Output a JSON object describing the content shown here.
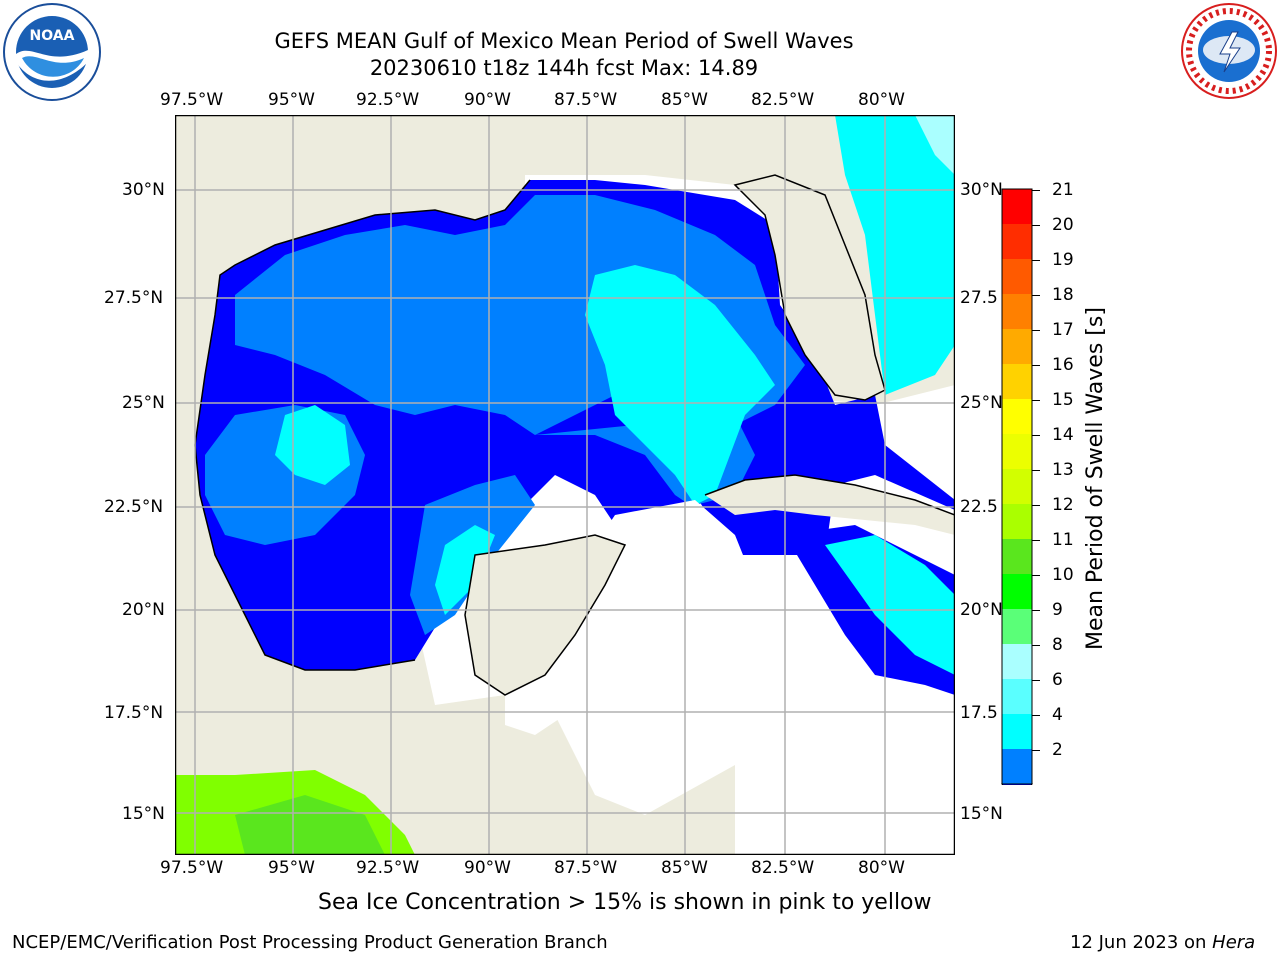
{
  "figure": {
    "title_line1": "GEFS MEAN Gulf of Mexico Mean Period of Swell Waves",
    "title_line2": "20230610 t18z 144h fcst   Max: 14.89",
    "note": "Sea Ice Concentration > 15% is shown in pink to yellow",
    "footer_left": "NCEP/EMC/Verification Post Processing Product Generation Branch",
    "footer_date": "12 Jun 2023 on ",
    "footer_host": "Hera"
  },
  "logos": {
    "left": "NOAA",
    "left_ring_text": "NATIONAL OCEANIC AND ATMOSPHERIC ADMINISTRATION · U.S. DEPARTMENT OF COMMERCE",
    "right_ring_text": "NATIONAL WEATHER SERVICE"
  },
  "map": {
    "lon_labels": [
      "97.5°W",
      "95°W",
      "92.5°W",
      "90°W",
      "87.5°W",
      "85°W",
      "82.5°W",
      "80°W"
    ],
    "lat_labels_left": [
      "30°N",
      "27.5°N",
      "25°N",
      "22.5°N",
      "20°N",
      "17.5°N",
      "15°N"
    ],
    "lat_labels_right": [
      "30°N",
      "27.5",
      "25°N",
      "22.5",
      "20°N",
      "17.5",
      "15°N"
    ],
    "colors": {
      "land": "#edecde",
      "grid": "#b0b0b0",
      "no_data": "#ffffff"
    }
  },
  "colorbar": {
    "label": "Mean Period of Swell Waves [s]",
    "tick_labels": [
      "21",
      "20",
      "19",
      "18",
      "17",
      "16",
      "15",
      "14",
      "13",
      "12",
      "11",
      "10",
      "9",
      "8",
      "6",
      "4",
      "2"
    ],
    "colors_top_to_bottom": [
      "#ff0000",
      "#ff2d00",
      "#ff5a00",
      "#ff8000",
      "#ffaa00",
      "#ffd200",
      "#ffff00",
      "#ecff00",
      "#d2ff00",
      "#aaff00",
      "#5ae61e",
      "#00ff00",
      "#5aff78",
      "#aaffff",
      "#5affff",
      "#00ffff",
      "#0080ff",
      "#0000ff"
    ]
  }
}
